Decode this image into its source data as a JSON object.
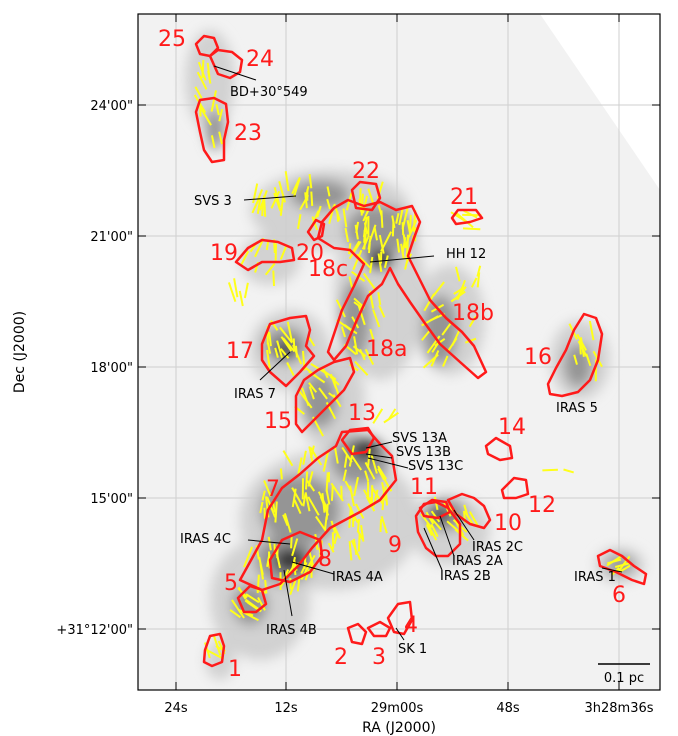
{
  "axes": {
    "xlabel": "RA (J2000)",
    "ylabel": "Dec (J2000)",
    "x_ticks": [
      "24s",
      "12s",
      "29m00s",
      "48s",
      "3h28m36s"
    ],
    "y_ticks": [
      "24'00\"",
      "21'00\"",
      "18'00\"",
      "15'00\"",
      "+31°12'00\""
    ]
  },
  "scalebar": {
    "label": "0.1 pc"
  },
  "colors": {
    "region": "#ff1a1a",
    "vector": "#ffff1a",
    "grid": "#d0d0d0",
    "emission": "#303030"
  },
  "regions": [
    {
      "id": "1",
      "label": "1"
    },
    {
      "id": "2",
      "label": "2"
    },
    {
      "id": "3",
      "label": "3"
    },
    {
      "id": "4",
      "label": "4"
    },
    {
      "id": "5",
      "label": "5"
    },
    {
      "id": "6",
      "label": "6"
    },
    {
      "id": "7",
      "label": "7"
    },
    {
      "id": "8",
      "label": "8"
    },
    {
      "id": "9",
      "label": "9"
    },
    {
      "id": "10",
      "label": "10"
    },
    {
      "id": "11",
      "label": "11"
    },
    {
      "id": "12",
      "label": "12"
    },
    {
      "id": "13",
      "label": "13"
    },
    {
      "id": "14",
      "label": "14"
    },
    {
      "id": "15",
      "label": "15"
    },
    {
      "id": "16",
      "label": "16"
    },
    {
      "id": "17",
      "label": "17"
    },
    {
      "id": "18a",
      "label": "18a"
    },
    {
      "id": "18b",
      "label": "18b"
    },
    {
      "id": "18c",
      "label": "18c"
    },
    {
      "id": "19",
      "label": "19"
    },
    {
      "id": "20",
      "label": "20"
    },
    {
      "id": "21",
      "label": "21"
    },
    {
      "id": "22",
      "label": "22"
    },
    {
      "id": "23",
      "label": "23"
    },
    {
      "id": "24",
      "label": "24"
    },
    {
      "id": "25",
      "label": "25"
    }
  ],
  "sources": [
    {
      "id": "bd",
      "label": "BD+30°549"
    },
    {
      "id": "svs3",
      "label": "SVS 3"
    },
    {
      "id": "hh12",
      "label": "HH 12"
    },
    {
      "id": "iras7",
      "label": "IRAS 7"
    },
    {
      "id": "iras5",
      "label": "IRAS 5"
    },
    {
      "id": "svs13a",
      "label": "SVS 13A"
    },
    {
      "id": "svs13b",
      "label": "SVS 13B"
    },
    {
      "id": "svs13c",
      "label": "SVS 13C"
    },
    {
      "id": "iras4c",
      "label": "IRAS 4C"
    },
    {
      "id": "iras4a",
      "label": "IRAS 4A"
    },
    {
      "id": "iras4b",
      "label": "IRAS 4B"
    },
    {
      "id": "iras2c",
      "label": "IRAS 2C"
    },
    {
      "id": "iras2a",
      "label": "IRAS 2A"
    },
    {
      "id": "iras2b",
      "label": "IRAS 2B"
    },
    {
      "id": "iras1",
      "label": "IRAS 1"
    },
    {
      "id": "sk1",
      "label": "SK 1"
    }
  ]
}
